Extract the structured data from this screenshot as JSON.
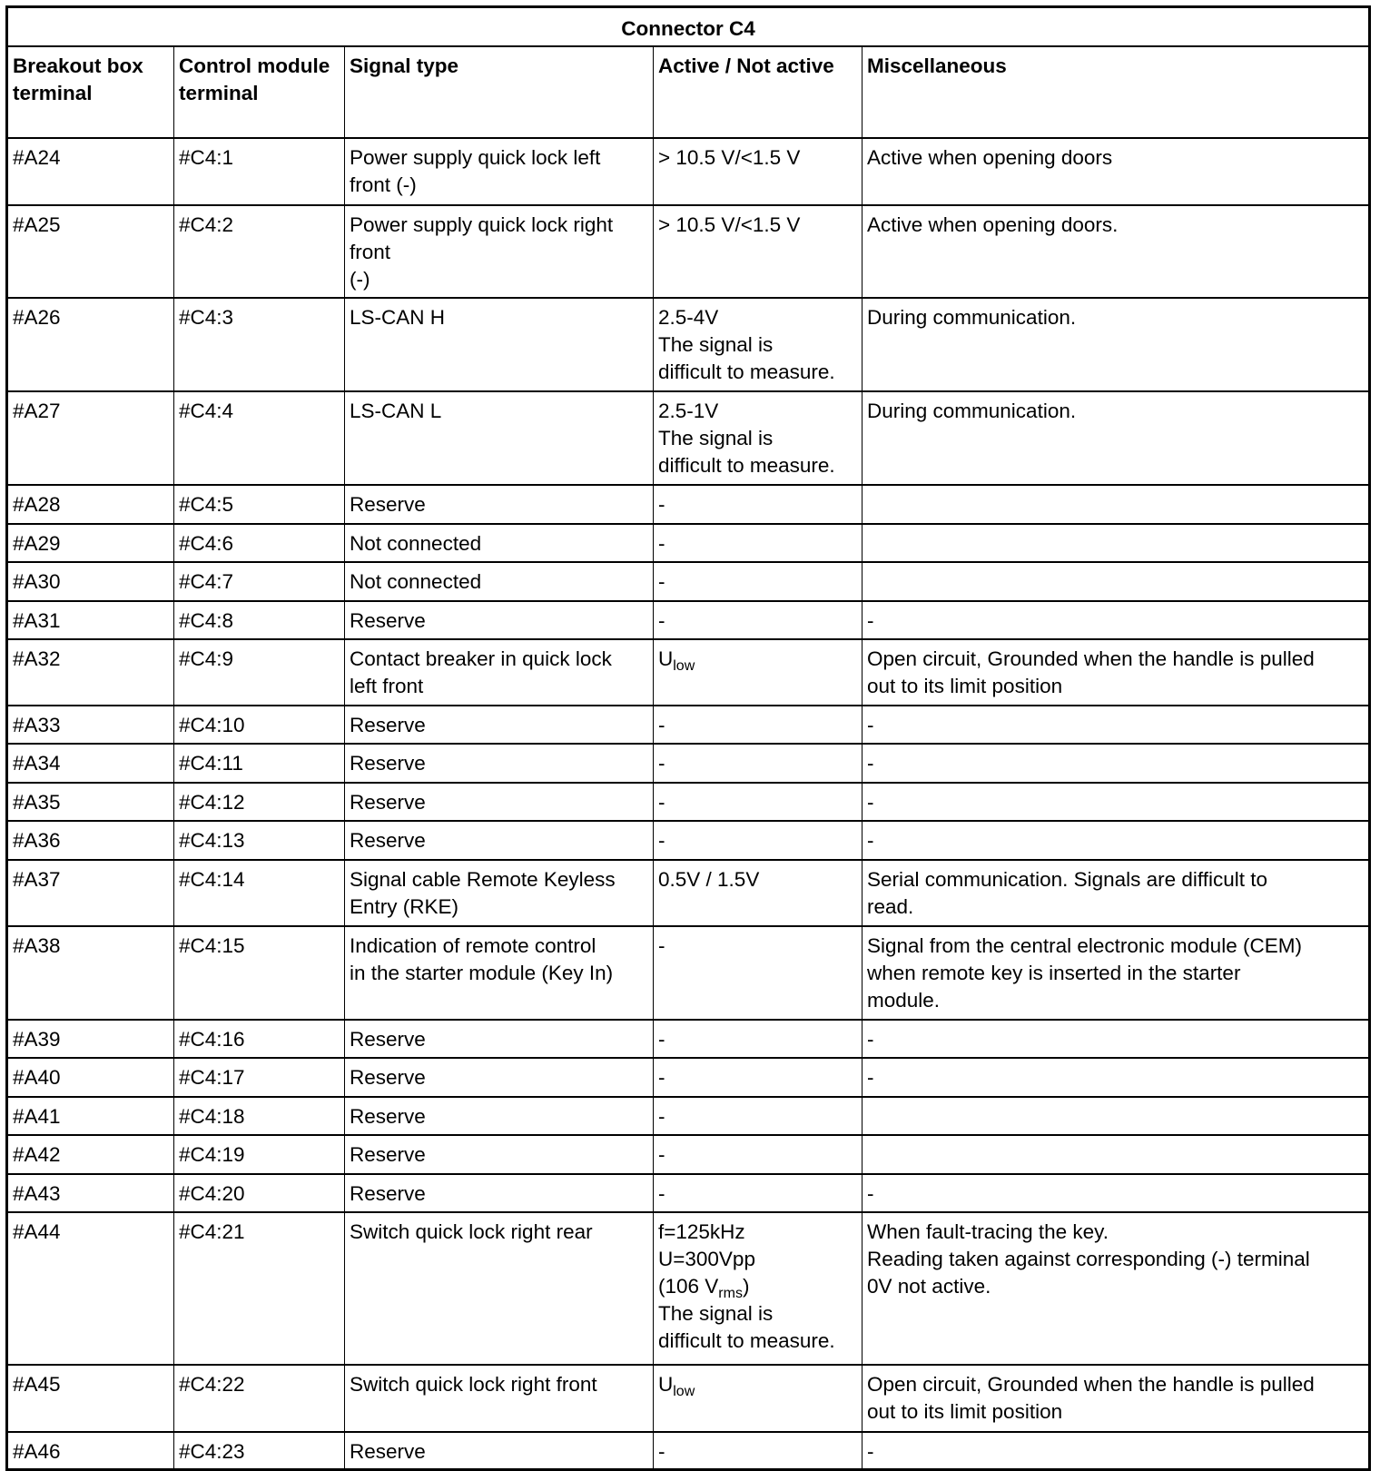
{
  "table": {
    "title": "Connector C4",
    "headers": [
      "Breakout box terminal",
      "Control module terminal",
      "Signal type",
      "Active / Not active",
      "Miscellaneous"
    ],
    "rows": [
      [
        [
          "#A24"
        ],
        [
          "#C4:1"
        ],
        [
          "Power supply quick lock left",
          "front (-)"
        ],
        [
          "> 10.5 V/<1.5 V"
        ],
        [
          "Active when opening doors"
        ]
      ],
      [
        [
          "#A25"
        ],
        [
          "#C4:2"
        ],
        [
          "Power supply quick lock right",
          "front",
          "(-)"
        ],
        [
          "> 10.5 V/<1.5 V"
        ],
        [
          "Active when opening doors."
        ]
      ],
      [
        [
          "#A26"
        ],
        [
          "#C4:3"
        ],
        [
          "LS-CAN H"
        ],
        [
          "2.5-4V",
          "The signal is",
          "difficult to measure."
        ],
        [
          "During communication."
        ]
      ],
      [
        [
          "#A27"
        ],
        [
          "#C4:4"
        ],
        [
          "LS-CAN L"
        ],
        [
          "2.5-1V",
          "The signal is",
          "difficult to measure."
        ],
        [
          "During communication."
        ]
      ],
      [
        [
          "#A28"
        ],
        [
          "#C4:5"
        ],
        [
          "Reserve"
        ],
        [
          "-"
        ],
        []
      ],
      [
        [
          "#A29"
        ],
        [
          "#C4:6"
        ],
        [
          "Not connected"
        ],
        [
          "-"
        ],
        []
      ],
      [
        [
          "#A30"
        ],
        [
          "#C4:7"
        ],
        [
          "Not connected"
        ],
        [
          "-"
        ],
        []
      ],
      [
        [
          "#A31"
        ],
        [
          "#C4:8"
        ],
        [
          "Reserve"
        ],
        [
          "-"
        ],
        [
          "-"
        ]
      ],
      [
        [
          "#A32"
        ],
        [
          "#C4:9"
        ],
        [
          "Contact breaker in quick lock",
          "left front"
        ],
        [
          {
            "text": "U",
            "sub": "low",
            "after": ""
          }
        ],
        [
          "Open circuit, Grounded when the handle is pulled",
          "out to its limit position"
        ]
      ],
      [
        [
          "#A33"
        ],
        [
          "#C4:10"
        ],
        [
          "Reserve"
        ],
        [
          "-"
        ],
        [
          "-"
        ]
      ],
      [
        [
          "#A34"
        ],
        [
          "#C4:11"
        ],
        [
          "Reserve"
        ],
        [
          "-"
        ],
        [
          "-"
        ]
      ],
      [
        [
          "#A35"
        ],
        [
          "#C4:12"
        ],
        [
          "Reserve"
        ],
        [
          "-"
        ],
        [
          "-"
        ]
      ],
      [
        [
          "#A36"
        ],
        [
          "#C4:13"
        ],
        [
          "Reserve"
        ],
        [
          "-"
        ],
        [
          "-"
        ]
      ],
      [
        [
          "#A37"
        ],
        [
          "#C4:14"
        ],
        [
          "Signal cable Remote Keyless",
          "Entry (RKE)"
        ],
        [
          "0.5V / 1.5V"
        ],
        [
          "Serial communication. Signals are difficult to",
          "read."
        ]
      ],
      [
        [
          "#A38"
        ],
        [
          "#C4:15"
        ],
        [
          "Indication of remote control",
          "in the starter module (Key In)"
        ],
        [
          "-"
        ],
        [
          "Signal from the central electronic module (CEM)",
          "when remote key is inserted in the starter",
          "module."
        ]
      ],
      [
        [
          "#A39"
        ],
        [
          "#C4:16"
        ],
        [
          "Reserve"
        ],
        [
          "-"
        ],
        [
          "-"
        ]
      ],
      [
        [
          "#A40"
        ],
        [
          "#C4:17"
        ],
        [
          "Reserve"
        ],
        [
          "-"
        ],
        [
          "-"
        ]
      ],
      [
        [
          "#A41"
        ],
        [
          "#C4:18"
        ],
        [
          "Reserve"
        ],
        [
          "-"
        ],
        []
      ],
      [
        [
          "#A42"
        ],
        [
          "#C4:19"
        ],
        [
          "Reserve"
        ],
        [
          "-"
        ],
        []
      ],
      [
        [
          "#A43"
        ],
        [
          "#C4:20"
        ],
        [
          "Reserve"
        ],
        [
          "-"
        ],
        [
          "-"
        ]
      ],
      [
        [
          "#A44"
        ],
        [
          "#C4:21"
        ],
        [
          "Switch quick lock right rear"
        ],
        [
          "f=125kHz",
          "U=300Vpp",
          {
            "text": "(106 V",
            "sub": "rms",
            "after": ")"
          },
          "The signal is",
          "difficult to measure."
        ],
        [
          "When fault-tracing the key.",
          "Reading taken against corresponding (-) terminal",
          "0V not active."
        ]
      ],
      [
        [
          "#A45"
        ],
        [
          "#C4:22"
        ],
        [
          "Switch quick lock right front"
        ],
        [
          {
            "text": "U",
            "sub": "low",
            "after": ""
          }
        ],
        [
          "Open circuit, Grounded when the handle is pulled",
          "out to its limit position"
        ]
      ],
      [
        [
          "#A46"
        ],
        [
          "#C4:23"
        ],
        [
          "Reserve"
        ],
        [
          "-"
        ],
        [
          "-"
        ]
      ]
    ]
  }
}
